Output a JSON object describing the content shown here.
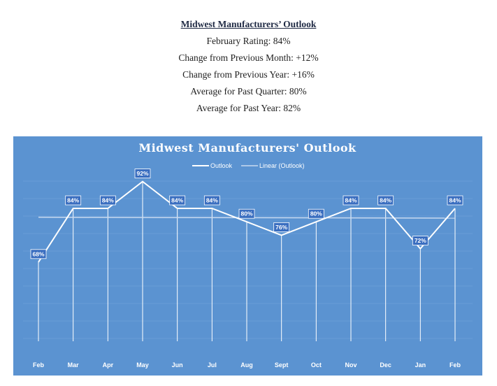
{
  "header": {
    "title": "Midwest Manufacturers’ Outlook",
    "stats": [
      "February Rating: 84%",
      "Change from Previous Month: +12%",
      "Change from Previous Year: +16%",
      "Average for Past Quarter: 80%",
      "Average for Past Year: 82%"
    ]
  },
  "colors": {
    "plot_background": "#5b93d1",
    "label_box": "#3a6ec0",
    "line": "#ffffff",
    "trendline": "#c9daf0",
    "title_text": "#1f2a44"
  },
  "chart_data": {
    "type": "line",
    "title": "Midwest Manufacturers' Outlook",
    "categories": [
      "Feb",
      "Mar",
      "Apr",
      "May",
      "Jun",
      "Jul",
      "Aug",
      "Sept",
      "Oct",
      "Nov",
      "Dec",
      "Jan",
      "Feb"
    ],
    "series": [
      {
        "name": "Outlook",
        "values": [
          68,
          84,
          84,
          92,
          84,
          84,
          80,
          76,
          80,
          84,
          84,
          72,
          84
        ],
        "labels": [
          "68%",
          "84%",
          "84%",
          "92%",
          "84%",
          "84%",
          "80%",
          "76%",
          "80%",
          "84%",
          "84%",
          "72%",
          "84%"
        ]
      }
    ],
    "trendline": {
      "name": "Linear (Outlook)",
      "type": "linear"
    },
    "legend_position": "top",
    "drop_lines": true,
    "grid": true,
    "ylim": [
      0,
      100
    ]
  }
}
